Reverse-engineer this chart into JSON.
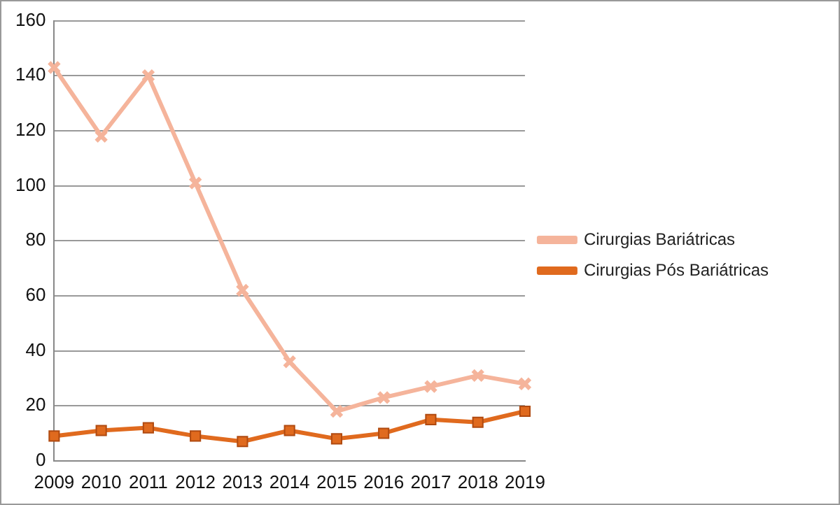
{
  "chart_data": {
    "type": "line",
    "categories": [
      "2009",
      "2010",
      "2011",
      "2012",
      "2013",
      "2014",
      "2015",
      "2016",
      "2017",
      "2018",
      "2019"
    ],
    "series": [
      {
        "name": "Cirurgias Bariátricas",
        "color": "#f5b49b",
        "marker": "cross",
        "values": [
          143,
          118,
          140,
          101,
          62,
          36,
          18,
          23,
          27,
          31,
          28
        ]
      },
      {
        "name": "Cirurgias Pós Bariátricas",
        "color": "#e06a1e",
        "marker": "square",
        "values": [
          9,
          11,
          12,
          9,
          7,
          11,
          8,
          10,
          15,
          14,
          18
        ]
      }
    ],
    "ylim": [
      0,
      160
    ],
    "yticks": [
      0,
      20,
      40,
      60,
      80,
      100,
      120,
      140,
      160
    ],
    "grid": "y",
    "legend": "right"
  }
}
